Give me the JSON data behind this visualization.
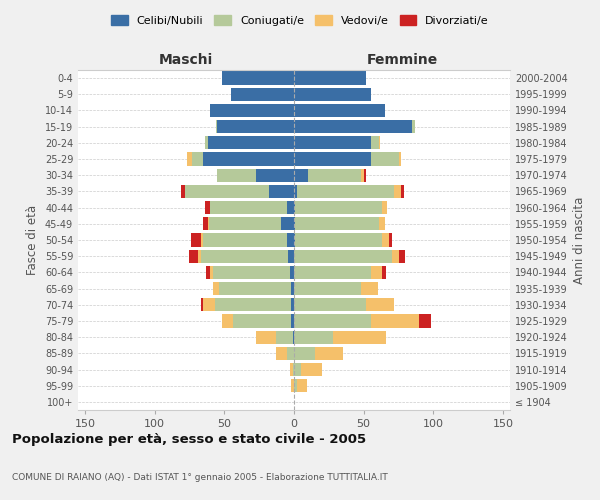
{
  "age_groups": [
    "100+",
    "95-99",
    "90-94",
    "85-89",
    "80-84",
    "75-79",
    "70-74",
    "65-69",
    "60-64",
    "55-59",
    "50-54",
    "45-49",
    "40-44",
    "35-39",
    "30-34",
    "25-29",
    "20-24",
    "15-19",
    "10-14",
    "5-9",
    "0-4"
  ],
  "birth_years": [
    "≤ 1904",
    "1905-1909",
    "1910-1914",
    "1915-1919",
    "1920-1924",
    "1925-1929",
    "1930-1934",
    "1935-1939",
    "1940-1944",
    "1945-1949",
    "1950-1954",
    "1955-1959",
    "1960-1964",
    "1965-1969",
    "1970-1974",
    "1975-1979",
    "1980-1984",
    "1985-1989",
    "1990-1994",
    "1995-1999",
    "2000-2004"
  ],
  "maschi": {
    "celibi": [
      0,
      0,
      0,
      0,
      1,
      2,
      2,
      2,
      3,
      4,
      5,
      9,
      5,
      18,
      27,
      65,
      62,
      55,
      60,
      45,
      52
    ],
    "coniugati": [
      0,
      0,
      1,
      5,
      12,
      42,
      55,
      52,
      55,
      63,
      60,
      52,
      55,
      60,
      28,
      8,
      2,
      1,
      0,
      0,
      0
    ],
    "vedovi": [
      0,
      2,
      2,
      8,
      14,
      8,
      8,
      4,
      2,
      2,
      2,
      1,
      0,
      0,
      0,
      4,
      0,
      0,
      0,
      0,
      0
    ],
    "divorziati": [
      0,
      0,
      0,
      0,
      0,
      0,
      2,
      0,
      3,
      6,
      7,
      3,
      4,
      3,
      0,
      0,
      0,
      0,
      0,
      0,
      0
    ]
  },
  "femmine": {
    "nubili": [
      0,
      0,
      0,
      0,
      0,
      0,
      0,
      0,
      0,
      0,
      1,
      1,
      1,
      2,
      10,
      55,
      55,
      85,
      65,
      55,
      52
    ],
    "coniugate": [
      0,
      2,
      5,
      15,
      28,
      55,
      52,
      48,
      55,
      70,
      62,
      60,
      62,
      70,
      38,
      20,
      6,
      2,
      0,
      0,
      0
    ],
    "vedove": [
      0,
      7,
      15,
      20,
      38,
      35,
      20,
      12,
      8,
      5,
      5,
      4,
      4,
      5,
      2,
      2,
      1,
      0,
      0,
      0,
      0
    ],
    "divorziate": [
      0,
      0,
      0,
      0,
      0,
      8,
      0,
      0,
      3,
      5,
      2,
      0,
      0,
      2,
      2,
      0,
      0,
      0,
      0,
      0,
      0
    ]
  },
  "colors": {
    "celibi": "#3a6ea5",
    "coniugati": "#b5c99a",
    "vedovi": "#f5c06a",
    "divorziati": "#cc2222"
  },
  "xlim": 155,
  "title": "Popolazione per età, sesso e stato civile - 2005",
  "subtitle": "COMUNE DI RAIANO (AQ) - Dati ISTAT 1° gennaio 2005 - Elaborazione TUTTITALIA.IT",
  "ylabel_left": "Fasce di età",
  "ylabel_right": "Anni di nascita",
  "xlabel_maschi": "Maschi",
  "xlabel_femmine": "Femmine",
  "legend_labels": [
    "Celibi/Nubili",
    "Coniugati/e",
    "Vedovi/e",
    "Divorziati/e"
  ],
  "bg_color": "#f0f0f0",
  "plot_bg_color": "#ffffff"
}
